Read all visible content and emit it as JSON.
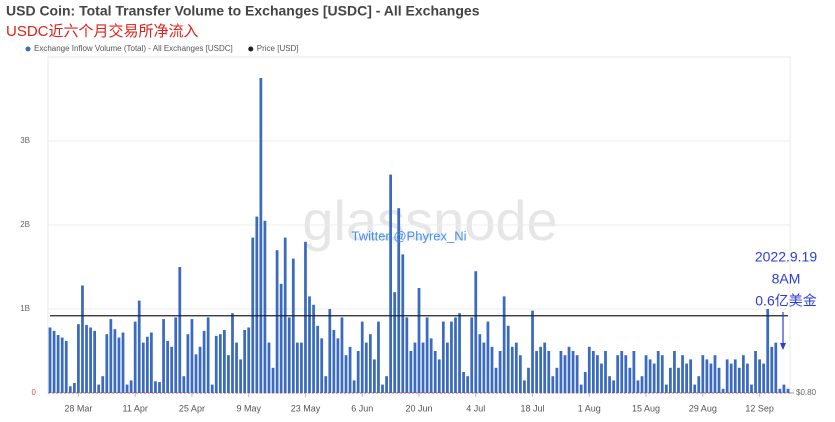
{
  "chart_data": {
    "type": "bar",
    "title": "USD Coin: Total Transfer Volume to Exchanges [USDC] - All Exchanges",
    "subtitle": "USDC近六个月交易所净流入",
    "watermark": "glassnode",
    "annotations": [
      "Twitter @Phyrex_Ni",
      "2022.9.19",
      "8AM",
      "0.6亿美金"
    ],
    "categories": [
      null,
      null,
      null,
      null,
      null,
      null,
      null,
      "28 Mar",
      null,
      null,
      null,
      null,
      null,
      null,
      null,
      null,
      null,
      null,
      null,
      null,
      null,
      "11 Apr",
      null,
      null,
      null,
      null,
      null,
      null,
      null,
      null,
      null,
      null,
      null,
      null,
      null,
      "25 Apr",
      null,
      null,
      null,
      null,
      null,
      null,
      null,
      null,
      null,
      null,
      null,
      null,
      null,
      "9 May",
      null,
      null,
      null,
      null,
      null,
      null,
      null,
      null,
      null,
      null,
      null,
      null,
      null,
      "23 May",
      null,
      null,
      null,
      null,
      null,
      null,
      null,
      null,
      null,
      null,
      null,
      null,
      null,
      "6 Jun",
      null,
      null,
      null,
      null,
      null,
      null,
      null,
      null,
      null,
      null,
      null,
      null,
      null,
      "20 Jun",
      null,
      null,
      null,
      null,
      null,
      null,
      null,
      null,
      null,
      null,
      null,
      null,
      null,
      "4 Jul",
      null,
      null,
      null,
      null,
      null,
      null,
      null,
      null,
      null,
      null,
      null,
      null,
      null,
      "18 Jul",
      null,
      null,
      null,
      null,
      null,
      null,
      null,
      null,
      null,
      null,
      null,
      null,
      null,
      "1 Aug",
      null,
      null,
      null,
      null,
      null,
      null,
      null,
      null,
      null,
      null,
      null,
      null,
      null,
      "15 Aug",
      null,
      null,
      null,
      null,
      null,
      null,
      null,
      null,
      null,
      null,
      null,
      null,
      null,
      "29 Aug",
      null,
      null,
      null,
      null,
      null,
      null,
      null,
      null,
      null,
      null,
      null,
      null,
      null,
      "12 Sep",
      null,
      null,
      null,
      null,
      null,
      null,
      null
    ],
    "series": [
      {
        "name": "Exchange Inflow Volume (Total) - All Exchanges [USDC]",
        "color": "#3a6bc0",
        "type": "bar",
        "values": [
          0.78,
          0.74,
          0.69,
          0.66,
          0.62,
          0.08,
          0.12,
          0.82,
          1.28,
          0.81,
          0.78,
          0.74,
          0.1,
          0.2,
          0.7,
          0.88,
          0.76,
          0.66,
          0.72,
          0.1,
          0.15,
          0.85,
          1.1,
          0.6,
          0.67,
          0.72,
          0.14,
          0.13,
          0.88,
          0.62,
          0.55,
          0.9,
          1.5,
          0.2,
          0.7,
          0.88,
          0.46,
          0.55,
          0.74,
          0.9,
          0.1,
          0.68,
          0.7,
          0.75,
          0.45,
          0.95,
          0.6,
          0.4,
          0.75,
          0.78,
          1.85,
          2.1,
          3.75,
          2.05,
          0.6,
          0.3,
          1.7,
          1.3,
          1.85,
          0.9,
          1.6,
          0.6,
          0.6,
          1.8,
          1.15,
          1.05,
          0.8,
          0.65,
          0.2,
          1.0,
          0.75,
          0.65,
          0.9,
          0.45,
          0.55,
          0.15,
          0.5,
          0.85,
          0.6,
          0.7,
          0.4,
          0.85,
          0.1,
          0.2,
          2.6,
          1.2,
          2.2,
          1.65,
          0.9,
          0.5,
          0.6,
          1.25,
          0.6,
          0.9,
          0.65,
          0.5,
          0.4,
          0.85,
          0.6,
          0.85,
          0.9,
          0.95,
          0.25,
          0.2,
          0.9,
          1.45,
          0.7,
          0.6,
          0.85,
          0.55,
          0.3,
          0.5,
          1.15,
          0.8,
          0.55,
          0.6,
          0.45,
          0.15,
          0.3,
          0.98,
          0.5,
          0.55,
          0.6,
          0.5,
          0.2,
          0.3,
          0.5,
          0.45,
          0.55,
          0.5,
          0.45,
          0.1,
          0.25,
          0.55,
          0.5,
          0.45,
          0.35,
          0.5,
          0.2,
          0.15,
          0.45,
          0.5,
          0.45,
          0.3,
          0.5,
          0.15,
          0.2,
          0.45,
          0.4,
          0.35,
          0.5,
          0.45,
          0.1,
          0.3,
          0.5,
          0.3,
          0.45,
          0.35,
          0.4,
          0.1,
          0.2,
          0.45,
          0.4,
          0.35,
          0.45,
          0.3,
          0.05,
          0.4,
          0.35,
          0.4,
          0.3,
          0.45,
          0.35,
          0.1,
          0.5,
          0.4,
          0.35,
          1.0,
          0.55,
          0.6,
          0.05,
          0.1,
          0.05
        ]
      },
      {
        "name": "Price [USD]",
        "color": "#222222",
        "type": "line",
        "axis": "y2",
        "values": [
          1,
          1,
          1,
          1,
          1,
          1,
          1,
          1,
          1,
          1,
          1,
          1,
          1,
          1,
          1,
          1,
          1,
          1,
          1,
          1,
          1,
          1,
          1,
          1,
          1,
          1,
          1,
          1,
          1,
          1,
          1,
          1,
          1,
          1,
          1,
          1,
          1,
          1,
          1,
          1,
          1,
          1,
          1,
          1,
          1,
          1,
          1,
          1,
          1,
          1,
          1,
          1,
          1,
          1,
          1,
          1,
          1,
          1,
          1,
          1,
          1,
          1,
          1,
          1,
          1,
          1,
          1,
          1,
          1,
          1,
          1,
          1,
          1,
          1,
          1,
          1,
          1,
          1,
          1,
          1,
          1,
          1,
          1,
          1,
          1,
          1,
          1,
          1,
          1,
          1,
          1,
          1,
          1,
          1,
          1,
          1,
          1,
          1,
          1,
          1,
          1,
          1,
          1,
          1,
          1,
          1,
          1,
          1,
          1,
          1,
          1,
          1,
          1,
          1,
          1,
          1,
          1,
          1,
          1,
          1,
          1,
          1,
          1,
          1,
          1,
          1,
          1,
          1,
          1,
          1,
          1,
          1,
          1,
          1,
          1,
          1,
          1,
          1,
          1,
          1,
          1,
          1,
          1,
          1,
          1,
          1,
          1,
          1,
          1,
          1,
          1,
          1,
          1,
          1,
          1,
          1,
          1,
          1,
          1,
          1,
          1,
          1,
          1,
          1,
          1,
          1,
          1,
          1,
          1,
          1,
          1,
          1,
          1,
          1,
          1,
          1,
          1,
          1,
          1,
          1,
          1,
          1,
          1
        ]
      }
    ],
    "ylim": [
      0,
      4
    ],
    "yticks": [
      0,
      {
        "value": 1,
        "label": "1B"
      },
      {
        "value": 2,
        "label": "2B"
      },
      {
        "value": 3,
        "label": "3B"
      }
    ],
    "y2lim": [
      0.8,
      1.67
    ],
    "y2ticks": [
      {
        "value": 0.8,
        "label": "$0.80"
      }
    ],
    "grid": true
  }
}
